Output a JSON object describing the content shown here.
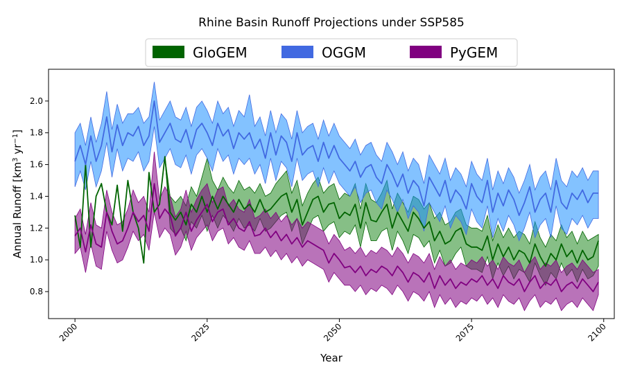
{
  "chart_data": {
    "type": "line",
    "title": "Rhine Basin Runoff Projections under SSP585",
    "xlabel": "Year",
    "ylabel": "Annual Runoff [km³ yr⁻¹]",
    "ylabel_parts": {
      "prefix": "Annual Runoff [km",
      "sup1": "3",
      "mid": " yr",
      "sup2": "−1",
      "suffix": "]"
    },
    "xlim": [
      1995,
      2102
    ],
    "ylim": [
      0.63,
      2.2
    ],
    "x_ticks": [
      2000,
      2025,
      2050,
      2075,
      2100
    ],
    "x_tick_labels": [
      "2000",
      "2025",
      "2050",
      "2075",
      "2100"
    ],
    "y_ticks": [
      0.8,
      1.0,
      1.2,
      1.4,
      1.6,
      1.8,
      2.0
    ],
    "y_tick_labels": [
      "0.8",
      "1.0",
      "1.2",
      "1.4",
      "1.6",
      "1.8",
      "2.0"
    ],
    "grid": false,
    "legend_position": "top-center",
    "series": [
      {
        "name": "GloGEM",
        "color": "#006400",
        "fill": "#228B22",
        "x_start": 2000,
        "mean": [
          1.28,
          1.08,
          1.6,
          1.08,
          1.4,
          1.48,
          1.3,
          1.22,
          1.47,
          1.18,
          1.5,
          1.3,
          1.2,
          0.98,
          1.55,
          1.3,
          1.35,
          1.65,
          1.3,
          1.25,
          1.3,
          1.22,
          1.35,
          1.3,
          1.4,
          1.3,
          1.4,
          1.32,
          1.4,
          1.35,
          1.3,
          1.38,
          1.32,
          1.35,
          1.3,
          1.38,
          1.3,
          1.32,
          1.36,
          1.4,
          1.42,
          1.3,
          1.38,
          1.22,
          1.3,
          1.38,
          1.4,
          1.3,
          1.35,
          1.36,
          1.26,
          1.3,
          1.28,
          1.35,
          1.2,
          1.36,
          1.25,
          1.24,
          1.3,
          1.35,
          1.2,
          1.3,
          1.24,
          1.18,
          1.3,
          1.26,
          1.2,
          1.24,
          1.12,
          1.18,
          1.1,
          1.12,
          1.18,
          1.2,
          1.1,
          1.08,
          1.08,
          1.06,
          1.15,
          1.0,
          1.1,
          1.02,
          1.08,
          1.0,
          1.06,
          1.04,
          0.98,
          1.1,
          1.02,
          0.96,
          1.04,
          1.0,
          1.1,
          1.02,
          1.06,
          0.98,
          1.06,
          1.0,
          1.02,
          1.12
        ],
        "upper": [
          1.28,
          1.08,
          1.6,
          1.08,
          1.4,
          1.48,
          1.3,
          1.22,
          1.47,
          1.18,
          1.5,
          1.3,
          1.2,
          0.98,
          1.55,
          1.3,
          1.35,
          1.65,
          1.4,
          1.36,
          1.4,
          1.34,
          1.46,
          1.4,
          1.52,
          1.64,
          1.5,
          1.44,
          1.52,
          1.46,
          1.42,
          1.5,
          1.44,
          1.46,
          1.42,
          1.48,
          1.4,
          1.42,
          1.48,
          1.52,
          1.56,
          1.42,
          1.5,
          1.34,
          1.42,
          1.48,
          1.52,
          1.42,
          1.46,
          1.48,
          1.38,
          1.42,
          1.4,
          1.48,
          1.32,
          1.48,
          1.38,
          1.36,
          1.42,
          1.5,
          1.32,
          1.42,
          1.36,
          1.3,
          1.4,
          1.38,
          1.32,
          1.36,
          1.26,
          1.3,
          1.22,
          1.24,
          1.3,
          1.32,
          1.22,
          1.2,
          1.2,
          1.18,
          1.28,
          1.12,
          1.22,
          1.14,
          1.2,
          1.14,
          1.18,
          1.16,
          1.1,
          1.24,
          1.14,
          1.08,
          1.16,
          1.12,
          1.22,
          1.14,
          1.18,
          1.1,
          1.18,
          1.12,
          1.14,
          1.16
        ],
        "lower": [
          1.28,
          1.08,
          1.6,
          1.08,
          1.4,
          1.48,
          1.3,
          1.22,
          1.47,
          1.18,
          1.5,
          1.3,
          1.2,
          0.98,
          1.55,
          1.3,
          1.35,
          1.65,
          1.2,
          1.16,
          1.2,
          1.12,
          1.24,
          1.2,
          1.28,
          1.18,
          1.28,
          1.2,
          1.28,
          1.24,
          1.18,
          1.26,
          1.2,
          1.22,
          1.18,
          1.26,
          1.18,
          1.2,
          1.24,
          1.28,
          1.3,
          1.18,
          1.26,
          1.1,
          1.18,
          1.26,
          1.28,
          1.18,
          1.22,
          1.24,
          1.14,
          1.18,
          1.16,
          1.22,
          1.08,
          1.24,
          1.12,
          1.12,
          1.18,
          1.2,
          1.06,
          1.18,
          1.12,
          1.04,
          1.16,
          1.14,
          1.08,
          1.12,
          0.98,
          1.06,
          0.96,
          0.98,
          1.04,
          1.08,
          0.96,
          0.94,
          0.94,
          0.92,
          1.02,
          0.88,
          0.98,
          0.9,
          0.96,
          0.88,
          0.94,
          0.92,
          0.86,
          0.98,
          0.9,
          0.84,
          0.92,
          0.88,
          0.98,
          0.9,
          0.94,
          0.86,
          0.94,
          0.88,
          0.9,
          0.96
        ]
      },
      {
        "name": "OGGM",
        "color": "#4169E1",
        "fill": "#1E90FF",
        "x_start": 2000,
        "mean": [
          1.62,
          1.72,
          1.6,
          1.78,
          1.62,
          1.72,
          1.9,
          1.68,
          1.85,
          1.72,
          1.8,
          1.78,
          1.84,
          1.72,
          1.78,
          2.0,
          1.74,
          1.8,
          1.86,
          1.76,
          1.74,
          1.82,
          1.7,
          1.82,
          1.86,
          1.8,
          1.72,
          1.86,
          1.78,
          1.82,
          1.7,
          1.8,
          1.76,
          1.8,
          1.7,
          1.76,
          1.64,
          1.8,
          1.66,
          1.78,
          1.74,
          1.62,
          1.8,
          1.66,
          1.7,
          1.72,
          1.62,
          1.74,
          1.64,
          1.72,
          1.64,
          1.6,
          1.56,
          1.62,
          1.52,
          1.58,
          1.6,
          1.52,
          1.48,
          1.6,
          1.54,
          1.46,
          1.54,
          1.42,
          1.5,
          1.46,
          1.34,
          1.52,
          1.46,
          1.4,
          1.5,
          1.36,
          1.44,
          1.4,
          1.32,
          1.48,
          1.4,
          1.36,
          1.5,
          1.3,
          1.42,
          1.34,
          1.44,
          1.38,
          1.28,
          1.36,
          1.46,
          1.3,
          1.38,
          1.42,
          1.3,
          1.5,
          1.36,
          1.32,
          1.42,
          1.38,
          1.44,
          1.36,
          1.42,
          1.42
        ],
        "upper": [
          1.8,
          1.86,
          1.72,
          1.9,
          1.74,
          1.86,
          2.06,
          1.82,
          1.98,
          1.86,
          1.92,
          1.92,
          1.96,
          1.86,
          1.9,
          2.12,
          1.88,
          1.94,
          2.0,
          1.9,
          1.88,
          1.96,
          1.84,
          1.96,
          2.0,
          1.94,
          1.86,
          2.0,
          1.92,
          1.96,
          1.84,
          1.94,
          1.9,
          2.04,
          1.84,
          1.9,
          1.78,
          1.94,
          1.8,
          1.92,
          1.88,
          1.76,
          1.94,
          1.8,
          1.84,
          1.86,
          1.76,
          1.88,
          1.78,
          1.86,
          1.78,
          1.74,
          1.7,
          1.76,
          1.66,
          1.72,
          1.74,
          1.66,
          1.62,
          1.74,
          1.68,
          1.6,
          1.68,
          1.56,
          1.64,
          1.6,
          1.48,
          1.66,
          1.6,
          1.54,
          1.64,
          1.5,
          1.58,
          1.54,
          1.46,
          1.62,
          1.54,
          1.5,
          1.64,
          1.44,
          1.56,
          1.48,
          1.58,
          1.52,
          1.42,
          1.5,
          1.6,
          1.44,
          1.52,
          1.56,
          1.44,
          1.64,
          1.5,
          1.46,
          1.56,
          1.52,
          1.58,
          1.5,
          1.56,
          1.56
        ],
        "lower": [
          1.46,
          1.56,
          1.44,
          1.62,
          1.46,
          1.56,
          1.74,
          1.52,
          1.7,
          1.56,
          1.64,
          1.62,
          1.68,
          1.56,
          1.62,
          1.84,
          1.58,
          1.64,
          1.7,
          1.6,
          1.58,
          1.66,
          1.54,
          1.66,
          1.7,
          1.64,
          1.56,
          1.7,
          1.62,
          1.66,
          1.54,
          1.64,
          1.6,
          1.64,
          1.54,
          1.6,
          1.48,
          1.64,
          1.5,
          1.62,
          1.58,
          1.46,
          1.64,
          1.5,
          1.54,
          1.56,
          1.46,
          1.58,
          1.48,
          1.56,
          1.48,
          1.44,
          1.4,
          1.46,
          1.36,
          1.42,
          1.44,
          1.36,
          1.32,
          1.44,
          1.38,
          1.3,
          1.38,
          1.26,
          1.34,
          1.3,
          1.18,
          1.36,
          1.3,
          1.24,
          1.34,
          1.2,
          1.28,
          1.24,
          1.16,
          1.32,
          1.24,
          1.2,
          1.34,
          1.14,
          1.26,
          1.18,
          1.28,
          1.22,
          1.12,
          1.2,
          1.3,
          1.14,
          1.22,
          1.26,
          1.14,
          1.34,
          1.2,
          1.16,
          1.26,
          1.22,
          1.28,
          1.2,
          1.26,
          1.26
        ]
      },
      {
        "name": "PyGEM",
        "color": "#800080",
        "fill": "#800080",
        "x_start": 2000,
        "mean": [
          1.15,
          1.2,
          1.05,
          1.22,
          1.1,
          1.08,
          1.3,
          1.18,
          1.1,
          1.12,
          1.2,
          1.3,
          1.24,
          1.28,
          1.18,
          1.48,
          1.26,
          1.32,
          1.28,
          1.15,
          1.2,
          1.3,
          1.18,
          1.25,
          1.3,
          1.35,
          1.24,
          1.3,
          1.32,
          1.22,
          1.26,
          1.2,
          1.18,
          1.24,
          1.15,
          1.16,
          1.2,
          1.14,
          1.18,
          1.12,
          1.16,
          1.1,
          1.14,
          1.08,
          1.12,
          1.1,
          1.08,
          1.06,
          0.98,
          1.04,
          1.0,
          0.95,
          0.96,
          0.92,
          0.96,
          0.9,
          0.94,
          0.92,
          0.96,
          0.94,
          0.9,
          0.96,
          0.92,
          0.86,
          0.92,
          0.9,
          0.86,
          0.92,
          0.82,
          0.9,
          0.84,
          0.88,
          0.82,
          0.86,
          0.84,
          0.88,
          0.86,
          0.9,
          0.84,
          0.88,
          0.82,
          0.9,
          0.86,
          0.84,
          0.88,
          0.8,
          0.86,
          0.9,
          0.82,
          0.86,
          0.84,
          0.88,
          0.8,
          0.84,
          0.86,
          0.82,
          0.88,
          0.84,
          0.8,
          0.86
        ],
        "upper": [
          1.26,
          1.32,
          1.16,
          1.36,
          1.22,
          1.2,
          1.44,
          1.3,
          1.22,
          1.24,
          1.32,
          1.44,
          1.36,
          1.4,
          1.3,
          1.68,
          1.38,
          1.46,
          1.4,
          1.27,
          1.32,
          1.44,
          1.3,
          1.38,
          1.44,
          1.48,
          1.36,
          1.44,
          1.46,
          1.34,
          1.38,
          1.32,
          1.3,
          1.38,
          1.26,
          1.28,
          1.32,
          1.26,
          1.3,
          1.24,
          1.28,
          1.22,
          1.26,
          1.2,
          1.24,
          1.22,
          1.2,
          1.18,
          1.1,
          1.16,
          1.12,
          1.06,
          1.08,
          1.04,
          1.08,
          1.02,
          1.06,
          1.04,
          1.08,
          1.06,
          1.02,
          1.08,
          1.04,
          0.98,
          1.04,
          1.02,
          0.98,
          1.04,
          0.94,
          1.02,
          0.96,
          1.0,
          0.94,
          0.98,
          0.96,
          1.0,
          0.98,
          1.02,
          0.96,
          1.0,
          0.94,
          1.02,
          0.98,
          0.96,
          1.0,
          0.92,
          0.98,
          1.02,
          0.94,
          0.98,
          0.96,
          1.0,
          0.92,
          0.96,
          0.98,
          0.94,
          1.0,
          0.96,
          0.92,
          0.94
        ],
        "lower": [
          1.04,
          1.08,
          0.92,
          1.1,
          0.96,
          0.94,
          1.18,
          1.06,
          0.98,
          1.0,
          1.08,
          1.18,
          1.12,
          1.16,
          1.06,
          1.3,
          1.14,
          1.2,
          1.16,
          1.03,
          1.08,
          1.18,
          1.06,
          1.14,
          1.18,
          1.22,
          1.12,
          1.18,
          1.2,
          1.1,
          1.14,
          1.08,
          1.06,
          1.12,
          1.04,
          1.04,
          1.08,
          1.02,
          1.06,
          1.0,
          1.04,
          0.98,
          1.02,
          0.96,
          1.0,
          0.98,
          0.96,
          0.94,
          0.86,
          0.92,
          0.88,
          0.84,
          0.84,
          0.8,
          0.84,
          0.78,
          0.82,
          0.8,
          0.84,
          0.82,
          0.78,
          0.84,
          0.8,
          0.74,
          0.8,
          0.78,
          0.74,
          0.8,
          0.7,
          0.78,
          0.72,
          0.76,
          0.7,
          0.74,
          0.72,
          0.76,
          0.74,
          0.78,
          0.72,
          0.76,
          0.7,
          0.78,
          0.74,
          0.72,
          0.76,
          0.68,
          0.74,
          0.78,
          0.7,
          0.74,
          0.72,
          0.76,
          0.68,
          0.72,
          0.74,
          0.7,
          0.76,
          0.72,
          0.68,
          0.78
        ]
      }
    ]
  }
}
